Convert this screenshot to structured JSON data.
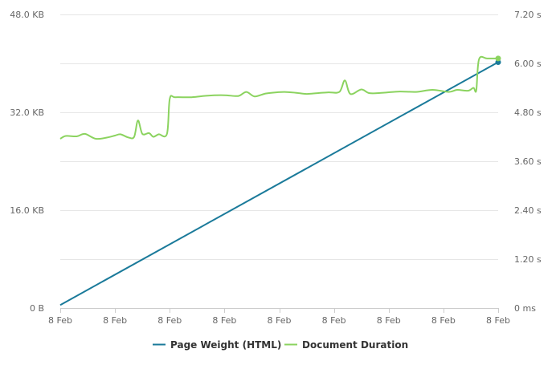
{
  "chart_data": {
    "type": "line",
    "x": [
      "8 Feb",
      "8 Feb",
      "8 Feb",
      "8 Feb",
      "8 Feb",
      "8 Feb",
      "8 Feb",
      "8 Feb",
      "8 Feb"
    ],
    "x_tick_labels": [
      "8 Feb",
      "8 Feb",
      "8 Feb",
      "8 Feb",
      "8 Feb",
      "8 Feb",
      "8 Feb",
      "8 Feb",
      "8 Feb"
    ],
    "y_left": {
      "ticks": [
        0,
        16,
        32,
        48
      ],
      "tick_labels": [
        "0 B",
        "16.0 KB",
        "32.0 KB",
        "48.0 KB"
      ],
      "range": [
        0,
        48
      ]
    },
    "y_right": {
      "ticks": [
        0,
        1.2,
        2.4,
        3.6,
        4.8,
        6.0,
        7.2
      ],
      "tick_labels": [
        "0 ms",
        "1.20 s",
        "2.40 s",
        "3.60 s",
        "4.80 s",
        "6.00 s",
        "7.20 s"
      ],
      "range": [
        0,
        7.2
      ]
    },
    "x_range": [
      0,
      8
    ],
    "grid": true,
    "legend_position": "bottom",
    "series": [
      {
        "name": "Page Weight (HTML)",
        "axis": "left",
        "color": "#1a7a9a",
        "points": [
          [
            0,
            0.5
          ],
          [
            8,
            40.2
          ]
        ]
      },
      {
        "name": "Document Duration",
        "axis": "right",
        "color": "#8bd35f",
        "points": [
          [
            0,
            4.15
          ],
          [
            0.1,
            4.22
          ],
          [
            0.3,
            4.21
          ],
          [
            0.45,
            4.27
          ],
          [
            0.65,
            4.15
          ],
          [
            0.85,
            4.18
          ],
          [
            1.0,
            4.23
          ],
          [
            1.1,
            4.26
          ],
          [
            1.25,
            4.18
          ],
          [
            1.35,
            4.2
          ],
          [
            1.42,
            4.6
          ],
          [
            1.5,
            4.27
          ],
          [
            1.62,
            4.29
          ],
          [
            1.7,
            4.2
          ],
          [
            1.8,
            4.26
          ],
          [
            1.95,
            4.27
          ],
          [
            2.0,
            5.13
          ],
          [
            2.1,
            5.17
          ],
          [
            2.4,
            5.17
          ],
          [
            2.7,
            5.21
          ],
          [
            3.0,
            5.22
          ],
          [
            3.25,
            5.2
          ],
          [
            3.4,
            5.3
          ],
          [
            3.55,
            5.19
          ],
          [
            3.75,
            5.26
          ],
          [
            3.95,
            5.29
          ],
          [
            4.1,
            5.3
          ],
          [
            4.3,
            5.28
          ],
          [
            4.5,
            5.25
          ],
          [
            4.7,
            5.27
          ],
          [
            4.9,
            5.29
          ],
          [
            5.1,
            5.3
          ],
          [
            5.2,
            5.58
          ],
          [
            5.3,
            5.25
          ],
          [
            5.5,
            5.36
          ],
          [
            5.65,
            5.27
          ],
          [
            5.9,
            5.28
          ],
          [
            6.2,
            5.31
          ],
          [
            6.5,
            5.3
          ],
          [
            6.8,
            5.35
          ],
          [
            7.1,
            5.3
          ],
          [
            7.25,
            5.35
          ],
          [
            7.45,
            5.33
          ],
          [
            7.55,
            5.4
          ],
          [
            7.6,
            5.34
          ],
          [
            7.65,
            6.1
          ],
          [
            7.8,
            6.12
          ],
          [
            8.0,
            6.12
          ]
        ]
      }
    ]
  }
}
